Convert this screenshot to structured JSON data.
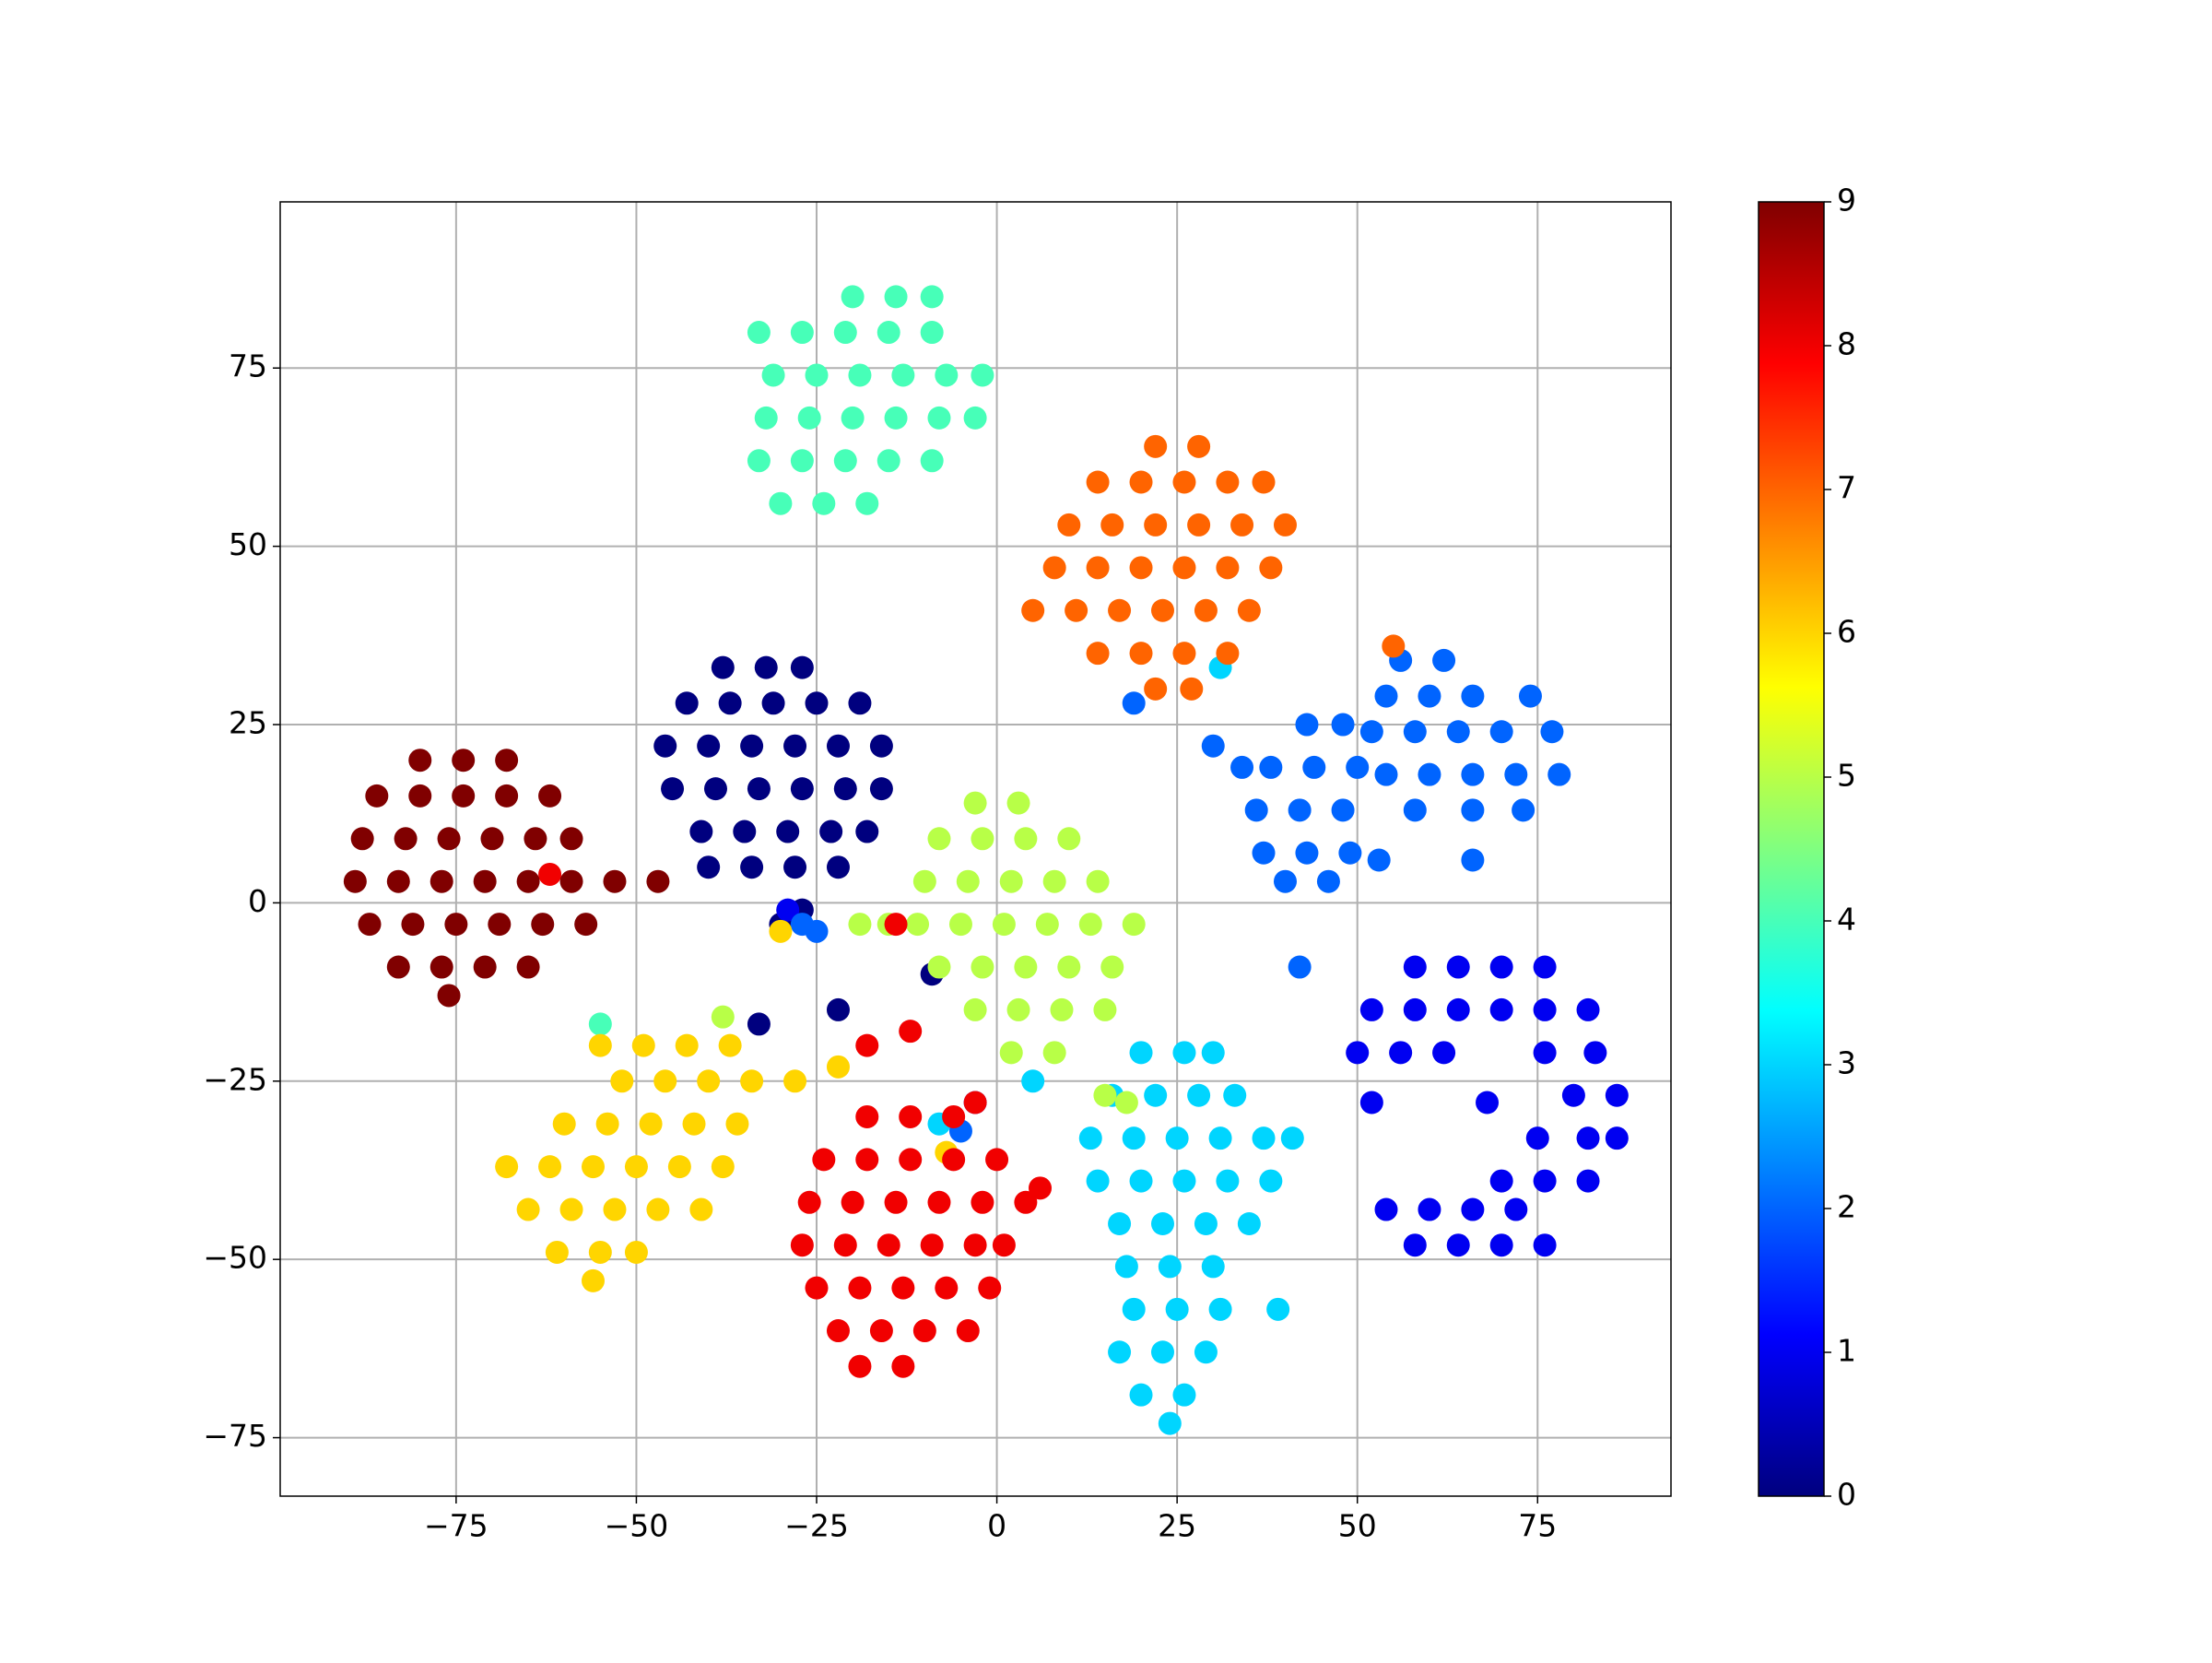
{
  "chart_data": {
    "type": "scatter",
    "xlim": [
      -99.4,
      93.5
    ],
    "ylim": [
      -83.2,
      98.3
    ],
    "xticks": [
      {
        "value": -75,
        "label": "−75"
      },
      {
        "value": -50,
        "label": "−50"
      },
      {
        "value": -25,
        "label": "−25"
      },
      0,
      25,
      50,
      75
    ],
    "yticks": [
      {
        "value": -75,
        "label": "−75"
      },
      {
        "value": -50,
        "label": "−50"
      },
      {
        "value": -25,
        "label": "−25"
      },
      0,
      25,
      50,
      75
    ],
    "grid": true,
    "colorbar": {
      "lim": [
        0,
        9
      ],
      "ticks": [
        0,
        1,
        2,
        3,
        4,
        5,
        6,
        7,
        8,
        9
      ],
      "colormap": [
        "#00007f",
        "#0000ff",
        "#0080ff",
        "#00ffff",
        "#80ff80",
        "#ffff00",
        "#ff8000",
        "#ff0000",
        "#800000"
      ]
    },
    "series": [
      {
        "c": 0,
        "x": [
          -38,
          -32,
          -27,
          -43,
          -37,
          -31,
          -25,
          -19,
          -46,
          -40,
          -34,
          -28,
          -22,
          -16,
          -45,
          -39,
          -33,
          -27,
          -21,
          -16,
          -41,
          -35,
          -29,
          -23,
          -18,
          -40,
          -34,
          -28,
          -22,
          -30,
          -27,
          -9,
          -22,
          -33
        ],
        "values": [
          33,
          33,
          33,
          28,
          28,
          28,
          28,
          28,
          22,
          22,
          22,
          22,
          22,
          22,
          16,
          16,
          16,
          16,
          16,
          16,
          10,
          10,
          10,
          10,
          10,
          5,
          5,
          5,
          5,
          -3,
          -1,
          -10,
          -15,
          -17
        ]
      },
      {
        "c": 1,
        "x": [
          58,
          64,
          70,
          76,
          52,
          58,
          64,
          70,
          76,
          82,
          50,
          56,
          62,
          76,
          83,
          80,
          86,
          75,
          82,
          86,
          70,
          76,
          82,
          54,
          60,
          66,
          72,
          58,
          64,
          70,
          76,
          52,
          68,
          -29,
          -3
        ],
        "values": [
          -9,
          -9,
          -9,
          -9,
          -15,
          -15,
          -15,
          -15,
          -15,
          -15,
          -21,
          -21,
          -21,
          -21,
          -21,
          -27,
          -27,
          -33,
          -33,
          -33,
          -39,
          -39,
          -39,
          -43,
          -43,
          -43,
          -43,
          -48,
          -48,
          -48,
          -48,
          -28,
          -28,
          -1,
          -28
        ]
      },
      {
        "c": 2,
        "x": [
          43,
          48,
          38,
          44,
          50,
          36,
          42,
          48,
          37,
          43,
          49,
          40,
          46,
          30,
          34,
          56,
          62,
          54,
          60,
          66,
          74,
          52,
          58,
          64,
          70,
          77,
          54,
          60,
          66,
          72,
          78,
          58,
          66,
          73,
          53,
          66,
          -27,
          -25,
          42,
          19,
          -5
        ],
        "values": [
          25,
          25,
          19,
          19,
          19,
          13,
          13,
          13,
          7,
          7,
          7,
          3,
          3,
          22,
          19,
          34,
          34,
          29,
          29,
          29,
          29,
          24,
          24,
          24,
          24,
          24,
          18,
          18,
          18,
          18,
          18,
          13,
          13,
          13,
          6,
          6,
          -3,
          -4,
          -9,
          28,
          -32
        ]
      },
      {
        "c": 3,
        "x": [
          20,
          26,
          30,
          16,
          22,
          28,
          33,
          13,
          19,
          25,
          31,
          37,
          41,
          14,
          20,
          26,
          32,
          38,
          17,
          23,
          29,
          35,
          18,
          24,
          30,
          19,
          25,
          31,
          39,
          17,
          23,
          29,
          20,
          26,
          24,
          5,
          -8,
          31
        ],
        "values": [
          -21,
          -21,
          -21,
          -27,
          -27,
          -27,
          -27,
          -33,
          -33,
          -33,
          -33,
          -33,
          -33,
          -39,
          -39,
          -39,
          -39,
          -39,
          -45,
          -45,
          -45,
          -45,
          -51,
          -51,
          -51,
          -57,
          -57,
          -57,
          -57,
          -63,
          -63,
          -63,
          -69,
          -69,
          -73,
          -25,
          -31,
          33
        ]
      },
      {
        "c": 4,
        "x": [
          -20,
          -14,
          -9,
          -33,
          -27,
          -21,
          -15,
          -9,
          -31,
          -25,
          -19,
          -13,
          -7,
          -2,
          -32,
          -26,
          -20,
          -14,
          -8,
          -3,
          -33,
          -27,
          -21,
          -15,
          -9,
          -30,
          -24,
          -18,
          -55
        ],
        "values": [
          85,
          85,
          85,
          80,
          80,
          80,
          80,
          80,
          74,
          74,
          74,
          74,
          74,
          74,
          68,
          68,
          68,
          68,
          68,
          68,
          62,
          62,
          62,
          62,
          62,
          56,
          56,
          56,
          -17
        ]
      },
      {
        "c": 5,
        "x": [
          -3,
          3,
          -8,
          -2,
          4,
          10,
          -10,
          -4,
          2,
          8,
          14,
          -11,
          -5,
          1,
          7,
          13,
          19,
          -8,
          -2,
          4,
          10,
          16,
          -3,
          3,
          9,
          15,
          2,
          8,
          -19,
          -15,
          15,
          18,
          -38
        ],
        "values": [
          14,
          14,
          9,
          9,
          9,
          9,
          3,
          3,
          3,
          3,
          3,
          -3,
          -3,
          -3,
          -3,
          -3,
          -3,
          -9,
          -9,
          -9,
          -9,
          -9,
          -15,
          -15,
          -15,
          -15,
          -21,
          -21,
          -3,
          -3,
          -27,
          -28,
          -16
        ]
      },
      {
        "c": 6,
        "x": [
          -55,
          -49,
          -43,
          -37,
          -52,
          -46,
          -40,
          -34,
          -28,
          -60,
          -54,
          -48,
          -42,
          -36,
          -68,
          -62,
          -56,
          -50,
          -44,
          -38,
          -65,
          -59,
          -53,
          -47,
          -41,
          -61,
          -55,
          -50,
          -56,
          -30,
          -7,
          -22
        ],
        "values": [
          -20,
          -20,
          -20,
          -20,
          -25,
          -25,
          -25,
          -25,
          -25,
          -31,
          -31,
          -31,
          -31,
          -31,
          -37,
          -37,
          -37,
          -37,
          -37,
          -37,
          -43,
          -43,
          -43,
          -43,
          -43,
          -49,
          -49,
          -49,
          -53,
          -4,
          -35,
          -23
        ]
      },
      {
        "c": 7,
        "x": [
          22,
          28,
          14,
          20,
          26,
          32,
          37,
          10,
          16,
          22,
          28,
          34,
          40,
          8,
          14,
          20,
          26,
          32,
          38,
          5,
          11,
          17,
          23,
          29,
          35,
          14,
          20,
          26,
          32,
          22,
          27,
          55
        ],
        "values": [
          64,
          64,
          59,
          59,
          59,
          59,
          59,
          53,
          53,
          53,
          53,
          53,
          53,
          47,
          47,
          47,
          47,
          47,
          47,
          41,
          41,
          41,
          41,
          41,
          41,
          35,
          35,
          35,
          35,
          30,
          30,
          36
        ]
      },
      {
        "c": 8,
        "x": [
          -18,
          -12,
          -6,
          -24,
          -18,
          -12,
          -6,
          0,
          -26,
          -20,
          -14,
          -8,
          -2,
          4,
          -27,
          -21,
          -15,
          -9,
          -3,
          1,
          -25,
          -19,
          -13,
          -7,
          -1,
          -22,
          -16,
          -10,
          -4,
          -19,
          -13,
          -18,
          -12,
          -3,
          6,
          -62,
          -14
        ],
        "values": [
          -30,
          -30,
          -30,
          -36,
          -36,
          -36,
          -36,
          -36,
          -42,
          -42,
          -42,
          -42,
          -42,
          -42,
          -48,
          -48,
          -48,
          -48,
          -48,
          -48,
          -54,
          -54,
          -54,
          -54,
          -54,
          -60,
          -60,
          -60,
          -60,
          -65,
          -65,
          -20,
          -18,
          -28,
          -40,
          4,
          -3
        ]
      },
      {
        "c": 9,
        "x": [
          -80,
          -74,
          -68,
          -86,
          -80,
          -74,
          -68,
          -62,
          -88,
          -82,
          -76,
          -70,
          -64,
          -59,
          -89,
          -83,
          -77,
          -71,
          -65,
          -59,
          -53,
          -47,
          -87,
          -81,
          -75,
          -69,
          -63,
          -57,
          -83,
          -77,
          -71,
          -65,
          -76
        ],
        "values": [
          20,
          20,
          20,
          15,
          15,
          15,
          15,
          15,
          9,
          9,
          9,
          9,
          9,
          9,
          3,
          3,
          3,
          3,
          3,
          3,
          3,
          3,
          -3,
          -3,
          -3,
          -3,
          -3,
          -3,
          -9,
          -9,
          -9,
          -9,
          -13
        ]
      }
    ]
  }
}
